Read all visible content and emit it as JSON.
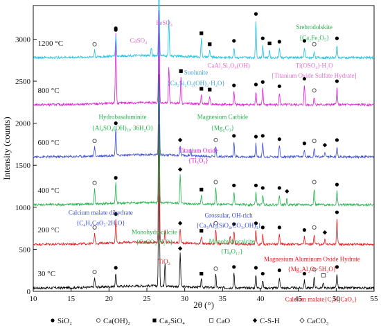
{
  "chart_data": {
    "type": "line",
    "xlabel": "2θ (°)",
    "ylabel": "Intensity (counts)",
    "xlim": [
      10,
      55
    ],
    "ylim": [
      0,
      3400
    ],
    "x_ticks": [
      10,
      15,
      20,
      25,
      30,
      35,
      40,
      45,
      50,
      55
    ],
    "y_ticks": [
      0,
      500,
      1000,
      1500,
      2000,
      2500,
      3000
    ],
    "grid": false,
    "legend_position": "bottom",
    "series": [
      {
        "name": "30 °C",
        "color": "#000000",
        "baseline": 40,
        "peaks": [
          [
            18.1,
            110
          ],
          [
            20.9,
            160
          ],
          [
            26.6,
            1920
          ],
          [
            27.4,
            280
          ],
          [
            29.4,
            390
          ],
          [
            32.2,
            90
          ],
          [
            34.1,
            150
          ],
          [
            36.5,
            170
          ],
          [
            39.4,
            160
          ],
          [
            40.3,
            90
          ],
          [
            42.5,
            130
          ],
          [
            45.8,
            90
          ],
          [
            47.1,
            140
          ],
          [
            48.3,
            70
          ],
          [
            50.1,
            170
          ]
        ]
      },
      {
        "name": "200 °C",
        "color": "#e41a1c",
        "baseline": 560,
        "peaks": [
          [
            18.1,
            120
          ],
          [
            20.9,
            280
          ],
          [
            26.6,
            1990
          ],
          [
            27.4,
            150
          ],
          [
            29.4,
            170
          ],
          [
            32.2,
            80
          ],
          [
            34.1,
            170
          ],
          [
            36.0,
            90
          ],
          [
            36.5,
            160
          ],
          [
            39.4,
            170
          ],
          [
            40.3,
            120
          ],
          [
            42.5,
            120
          ],
          [
            45.8,
            90
          ],
          [
            47.1,
            120
          ],
          [
            48.5,
            60
          ],
          [
            50.1,
            300
          ]
        ]
      },
      {
        "name": "400 °C",
        "color": "#1db34a",
        "baseline": 1030,
        "peaks": [
          [
            18.1,
            180
          ],
          [
            20.9,
            240
          ],
          [
            26.6,
            1500
          ],
          [
            29.4,
            340
          ],
          [
            32.2,
            100
          ],
          [
            34.1,
            190
          ],
          [
            36.5,
            150
          ],
          [
            39.4,
            150
          ],
          [
            40.3,
            120
          ],
          [
            42.5,
            120
          ],
          [
            43.5,
            80
          ],
          [
            47.1,
            190
          ],
          [
            50.1,
            160
          ]
        ]
      },
      {
        "name": "600 °C",
        "color": "#3a4ad8",
        "baseline": 1600,
        "peaks": [
          [
            18.1,
            110
          ],
          [
            20.9,
            320
          ],
          [
            26.6,
            1450
          ],
          [
            29.4,
            120
          ],
          [
            30.8,
            80
          ],
          [
            34.1,
            120
          ],
          [
            36.5,
            170
          ],
          [
            39.4,
            160
          ],
          [
            40.3,
            170
          ],
          [
            42.5,
            130
          ],
          [
            45.8,
            80
          ],
          [
            47.1,
            110
          ],
          [
            48.5,
            60
          ],
          [
            50.1,
            120
          ]
        ]
      },
      {
        "name": "800 °C",
        "color": "#e31ad8",
        "baseline": 2220,
        "peaks": [
          [
            20.9,
            830
          ],
          [
            26.6,
            1100
          ],
          [
            27.9,
            420
          ],
          [
            29.5,
            320
          ],
          [
            32.2,
            110
          ],
          [
            33.3,
            100
          ],
          [
            36.5,
            150
          ],
          [
            39.4,
            160
          ],
          [
            40.3,
            190
          ],
          [
            42.5,
            140
          ],
          [
            45.8,
            230
          ],
          [
            47.1,
            90
          ],
          [
            50.1,
            200
          ]
        ]
      },
      {
        "name": "1200 °C",
        "color": "#18c1e3",
        "baseline": 2780,
        "peaks": [
          [
            18.1,
            80
          ],
          [
            20.9,
            250
          ],
          [
            25.6,
            100
          ],
          [
            26.6,
            900
          ],
          [
            27.9,
            430
          ],
          [
            32.2,
            210
          ],
          [
            33.3,
            80
          ],
          [
            36.5,
            120
          ],
          [
            39.4,
            440
          ],
          [
            40.3,
            150
          ],
          [
            41.2,
            90
          ],
          [
            42.5,
            110
          ],
          [
            45.8,
            120
          ],
          [
            47.1,
            80
          ],
          [
            50.1,
            150
          ]
        ]
      }
    ],
    "annotations": [
      {
        "text": "FeSO₄",
        "x": 27.3,
        "y": 3170,
        "color": "#e36fd0"
      },
      {
        "text": "CaSO₄",
        "x": 23.9,
        "y": 2960,
        "color": "#e36fd0"
      },
      {
        "text": "CaAl₂Si₂O₈(OH)",
        "x": 35.8,
        "y": 2660,
        "color": "#e36fd0"
      },
      {
        "text": "Srebrodolskite",
        "x": 47.1,
        "y": 3120,
        "color": "#1db34a"
      },
      {
        "text": "{Ca₂Fe₂O₅}",
        "x": 47.1,
        "y": 2990,
        "color": "#1db34a"
      },
      {
        "text": "Ti(OSO₄)·H₂O",
        "x": 47.1,
        "y": 2660,
        "color": "#e36fd0"
      },
      {
        "text": "[Titanium Oxide Sulfate Hydrate]",
        "x": 47.1,
        "y": 2540,
        "color": "#e36fd0"
      },
      {
        "text": "Suolunite",
        "x": 31.5,
        "y": 2580,
        "color": "#3aa1d8"
      },
      {
        "text": "{Ca₂Si₂O₅(OH)₂·H₂O}",
        "x": 31.5,
        "y": 2450,
        "color": "#3aa1d8"
      },
      {
        "text": "Hydrobasaluminite",
        "x": 21.8,
        "y": 2050,
        "color": "#1db34a"
      },
      {
        "text": "{Al₄SO₄(OH)₁₀·36H₂O}",
        "x": 21.8,
        "y": 1920,
        "color": "#1db34a"
      },
      {
        "text": "Magnesium Carbide",
        "x": 35.0,
        "y": 2050,
        "color": "#1db34a"
      },
      {
        "text": "{Mg₂C₃}",
        "x": 35.0,
        "y": 1920,
        "color": "#1db34a"
      },
      {
        "text": "Titanium Oxide",
        "x": 31.8,
        "y": 1650,
        "color": "#e31ad8"
      },
      {
        "text": "{Ti₃O₅}",
        "x": 31.8,
        "y": 1530,
        "color": "#e31ad8"
      },
      {
        "text": "Calcium malate dihydrate",
        "x": 18.9,
        "y": 910,
        "color": "#3a4ad8"
      },
      {
        "text": "{C₄H₄CaO₅·2H₂O}",
        "x": 18.9,
        "y": 790,
        "color": "#3a4ad8"
      },
      {
        "text": "Grossular, OH-rich",
        "x": 35.8,
        "y": 880,
        "color": "#3a4ad8"
      },
      {
        "text": "{Ca₃Al₂(SiO₄,CO₃,OH)₃}",
        "x": 35.8,
        "y": 760,
        "color": "#3a4ad8"
      },
      {
        "text": "Monohydrocalcite",
        "x": 26.0,
        "y": 680,
        "color": "#1db34a"
      },
      {
        "text": "{CaCO₃·H₂O}",
        "x": 26.0,
        "y": 560,
        "color": "#1db34a"
      },
      {
        "text": "Monohydrocalcite",
        "x": 36.2,
        "y": 570,
        "color": "#1db34a"
      },
      {
        "text": "{Ti₉O₁₇}",
        "x": 36.2,
        "y": 450,
        "color": "#1db34a"
      },
      {
        "text": "TiO₂",
        "x": 27.3,
        "y": 330,
        "color": "#e41a1c"
      },
      {
        "text": "Magnesium Aluminum Oxide Hydrate",
        "x": 46.8,
        "y": 360,
        "color": "#e41a1c"
      },
      {
        "text": "{Mg₄Al₂O₇·5H₂O}",
        "x": 46.8,
        "y": 240,
        "color": "#e41a1c"
      },
      {
        "text": "Calcium malate{C₄H₄CaO₅}",
        "x": 48.0,
        "y": -120,
        "color": "#e41a1c"
      }
    ],
    "legend": [
      {
        "label": "SiO₂",
        "marker": "filled-circle"
      },
      {
        "label": "Ca(OH)₂",
        "marker": "open-circle"
      },
      {
        "label": "Ca₂SiO₄",
        "marker": "filled-square"
      },
      {
        "label": "CaO",
        "marker": "open-square"
      },
      {
        "label": "C-S-H",
        "marker": "filled-diamond"
      },
      {
        "label": "CaCO₃",
        "marker": "open-diamond"
      }
    ]
  }
}
